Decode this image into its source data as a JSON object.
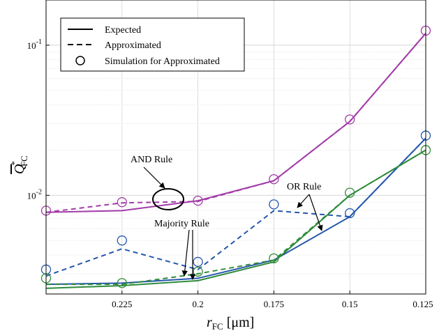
{
  "chart_data": {
    "type": "line",
    "title": "",
    "xlabel": {
      "main": "r",
      "sub": "FC",
      "unit": " [μm]"
    },
    "ylabel": {
      "main": "Q",
      "sup": "*",
      "sub": "FC"
    },
    "yscale": "log",
    "xlim": [
      0.25,
      0.125
    ],
    "ylim": [
      0.0022,
      0.2
    ],
    "grid": true,
    "x": [
      0.25,
      0.225,
      0.2,
      0.175,
      0.15,
      0.125
    ],
    "x_tick_labels": [
      "0.225",
      "0.2",
      "0.175",
      "0.15",
      "0.125"
    ],
    "y_tick_labels": [
      {
        "value": 0.1,
        "base": "10",
        "exp": "-1"
      },
      {
        "value": 0.01,
        "base": "10",
        "exp": "-2"
      }
    ],
    "legend": {
      "placement": "top-left",
      "entries": [
        {
          "label": "Expected",
          "style": "solid"
        },
        {
          "label": "Approximated",
          "style": "dashed"
        },
        {
          "label": "Simulation for Approximated",
          "style": "marker"
        }
      ]
    },
    "series": [
      {
        "rule": "AND",
        "color": "#A23BA8",
        "style": "solid",
        "values": [
          0.0077,
          0.0079,
          0.0092,
          0.0125,
          0.031,
          0.12
        ]
      },
      {
        "rule": "AND",
        "color": "#A23BA8",
        "style": "dashed",
        "values": [
          0.0077,
          0.0089,
          0.0091,
          0.0125,
          0.031,
          0.12
        ]
      },
      {
        "rule": "AND",
        "color": "#A23BA8",
        "style": "marker",
        "values": [
          0.0079,
          0.009,
          0.0092,
          0.0128,
          0.032,
          0.125
        ]
      },
      {
        "rule": "OR",
        "color": "#2456AD",
        "style": "solid",
        "values": [
          0.00255,
          0.0026,
          0.0028,
          0.0037,
          0.0072,
          0.024
        ]
      },
      {
        "rule": "OR",
        "color": "#2456AD",
        "style": "dashed",
        "values": [
          0.0029,
          0.0044,
          0.0032,
          0.0079,
          0.0072,
          0.024
        ]
      },
      {
        "rule": "OR",
        "color": "#2456AD",
        "style": "marker",
        "values": [
          0.0032,
          0.005,
          0.0036,
          0.0087,
          0.0076,
          0.025
        ]
      },
      {
        "rule": "Majority",
        "color": "#2E8B3A",
        "style": "solid",
        "values": [
          0.0024,
          0.0025,
          0.0027,
          0.0036,
          0.01,
          0.02
        ]
      },
      {
        "rule": "Majority",
        "color": "#2E8B3A",
        "style": "dashed",
        "values": [
          0.00255,
          0.00255,
          0.003,
          0.0037,
          0.01,
          0.02
        ]
      },
      {
        "rule": "Majority",
        "color": "#2E8B3A",
        "style": "marker",
        "values": [
          0.0028,
          0.0026,
          0.0031,
          0.0038,
          0.0104,
          0.02
        ]
      }
    ],
    "annotations": [
      {
        "text": "AND Rule",
        "target_x": 0.2125,
        "target_y": 0.009
      },
      {
        "text": "OR Rule",
        "target_x": 0.1625,
        "target_y": 0.0079
      },
      {
        "text": "Majority Rule",
        "target_x": 0.2055,
        "target_y": 0.0027
      }
    ]
  }
}
